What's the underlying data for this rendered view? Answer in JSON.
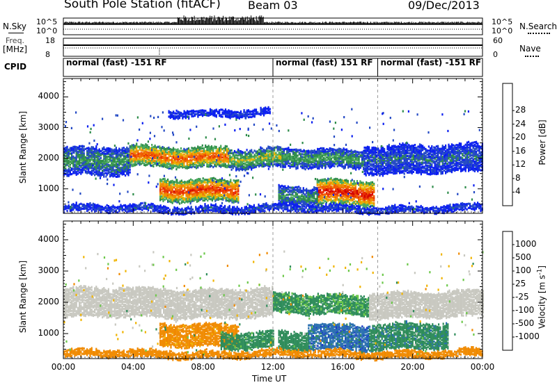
{
  "header": {
    "station": "South Pole Station (fitACF)",
    "beam": "Beam 03",
    "date": "09/Dec/2013"
  },
  "top_panels": {
    "nsky_label": "N.Sky",
    "nsearch_label": "N.Search",
    "nsky_ticks": [
      "10^5",
      "10^0"
    ],
    "nsearch_ticks": [
      "10^5",
      "10^0"
    ],
    "freq_label_1": "Freq.",
    "freq_label_2": "[MHz]",
    "freq_ticks": [
      "18",
      "8"
    ],
    "nave_label": "Nave",
    "nave_ticks": [
      "60",
      "0"
    ],
    "cpid_label": "CPID",
    "cpid_segments": [
      {
        "text": "normal (fast) -151 RF",
        "start": 0,
        "end": 12
      },
      {
        "text": "normal (fast) 151 RF",
        "start": 12,
        "end": 18
      },
      {
        "text": "normal (fast) -151 RF",
        "start": 18,
        "end": 24
      }
    ]
  },
  "chart_data": [
    {
      "type": "heatmap",
      "panel": "power",
      "ylabel": "Slant Range [km]",
      "xlabel": "",
      "xlim": [
        0,
        24
      ],
      "ylim": [
        200,
        4600
      ],
      "y_ticks": [
        "1000",
        "2000",
        "3000",
        "4000"
      ],
      "colorbar_label": "Power [dB]",
      "colorbar_ticks": [
        "4",
        "8",
        "12",
        "16",
        "20",
        "24",
        "28"
      ],
      "colorbar_colors": [
        "#0a1ef0",
        "#2349c4",
        "#2e8c4a",
        "#49a85c",
        "#e6b400",
        "#f08a00",
        "#f05a00",
        "#e82a00",
        "#d20000"
      ],
      "regions": [
        {
          "t0": 0.0,
          "t1": 3.8,
          "r0": 1400,
          "r1": 2300,
          "level": 10
        },
        {
          "t0": 3.8,
          "t1": 9.5,
          "r0": 1700,
          "r1": 2350,
          "level": 22
        },
        {
          "t0": 9.5,
          "t1": 12.5,
          "r0": 1650,
          "r1": 2250,
          "level": 14
        },
        {
          "t0": 12.5,
          "t1": 17.2,
          "r0": 1650,
          "r1": 2250,
          "level": 11
        },
        {
          "t0": 17.2,
          "t1": 24.0,
          "r0": 1500,
          "r1": 2400,
          "level": 7
        },
        {
          "t0": 5.5,
          "t1": 10.0,
          "r0": 600,
          "r1": 1300,
          "level": 24
        },
        {
          "t0": 14.5,
          "t1": 17.8,
          "r0": 450,
          "r1": 1250,
          "level": 26
        },
        {
          "t0": 12.3,
          "t1": 14.5,
          "r0": 400,
          "r1": 1000,
          "level": 10
        },
        {
          "t0": 0.0,
          "t1": 24.0,
          "r0": 220,
          "r1": 420,
          "level": 6
        },
        {
          "t0": 6.0,
          "t1": 11.8,
          "r0": 3350,
          "r1": 3550,
          "level": 5
        }
      ]
    },
    {
      "type": "heatmap",
      "panel": "velocity",
      "ylabel": "Slant Range [km]",
      "xlabel": "Time UT",
      "xlim": [
        0,
        24
      ],
      "ylim": [
        200,
        4600
      ],
      "x_ticks": [
        "00:00",
        "04:00",
        "08:00",
        "12:00",
        "16:00",
        "20:00",
        "00:00"
      ],
      "y_ticks": [
        "1000",
        "2000",
        "3000",
        "4000"
      ],
      "colorbar_label": "Velocity [m s^-1]",
      "colorbar_ticks": [
        "1000",
        "500",
        "100",
        "25",
        "-25",
        "-100",
        "-500",
        "-1000"
      ],
      "colorbar_colors": [
        "#1e3cc8",
        "#2a6fb0",
        "#2e8c5a",
        "#6cc84a",
        "#c8c8c0",
        "#f0b400",
        "#f08a00",
        "#f05000",
        "#e61e00"
      ],
      "regions": [
        {
          "t0": 0.0,
          "t1": 12.0,
          "r0": 1500,
          "r1": 2400,
          "vel": 0
        },
        {
          "t0": 12.0,
          "t1": 17.5,
          "r0": 1600,
          "r1": 2200,
          "vel": 120
        },
        {
          "t0": 17.5,
          "t1": 24.0,
          "r0": 1500,
          "r1": 2300,
          "vel": 0
        },
        {
          "t0": 5.5,
          "t1": 10.0,
          "r0": 600,
          "r1": 1300,
          "vel": -150
        },
        {
          "t0": 9.0,
          "t1": 12.0,
          "r0": 500,
          "r1": 1000,
          "vel": 150
        },
        {
          "t0": 14.0,
          "t1": 17.5,
          "r0": 450,
          "r1": 1250,
          "vel": 600
        },
        {
          "t0": 12.3,
          "t1": 14.0,
          "r0": 400,
          "r1": 1000,
          "vel": 200
        },
        {
          "t0": 17.5,
          "t1": 22.0,
          "r0": 500,
          "r1": 1300,
          "vel": 300
        },
        {
          "t0": 0.0,
          "t1": 24.0,
          "r0": 220,
          "r1": 420,
          "vel": -200
        }
      ]
    }
  ]
}
